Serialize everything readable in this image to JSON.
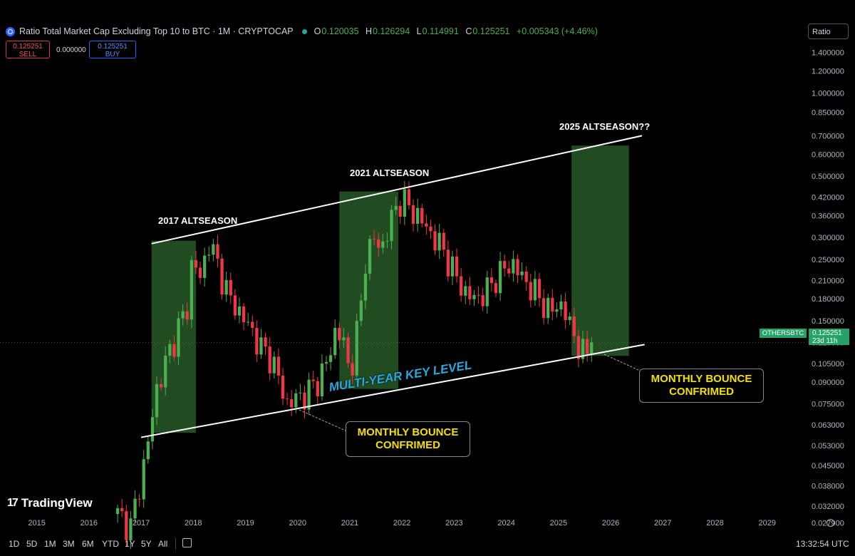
{
  "header": {
    "title": "Ratio Total Market Cap Excluding Top 10 to BTC · 1M · CRYPTOCAP",
    "open_label": "O",
    "open": "0.120035",
    "high_label": "H",
    "high": "0.126294",
    "low_label": "L",
    "low": "0.114991",
    "close_label": "C",
    "close": "0.125251",
    "change": "+0.005343 (+4.46%)"
  },
  "trade": {
    "sell_price": "0.125251",
    "sell_label": "SELL",
    "spread": "0.000000",
    "buy_price": "0.125251",
    "buy_label": "BUY"
  },
  "scale_button": "Ratio",
  "current": {
    "symbol": "OTHERSBTC",
    "price": "0.125251",
    "countdown": "23d 11h"
  },
  "bottom": {
    "timeframes": [
      "1D",
      "5D",
      "1M",
      "3M",
      "6M",
      "YTD",
      "1Y",
      "5Y",
      "All"
    ],
    "clock": "13:32:54 UTC"
  },
  "branding": "TradingView",
  "colors": {
    "up": "#4caf50",
    "down": "#f23645",
    "zone": "#2e6a2e",
    "callout_text": "#f5e000",
    "key_level_text": "#29a8e0"
  },
  "chart_data": {
    "type": "candlestick",
    "title": "Ratio Total Market Cap Excluding Top 10 to BTC",
    "interval": "1M",
    "scale": "log",
    "ylim": [
      0.0265,
      1.5
    ],
    "xlim": [
      2014.5,
      2029.7
    ],
    "y_ticks": [
      "1.400000",
      "1.200000",
      "1.000000",
      "0.850000",
      "0.700000",
      "0.600000",
      "0.500000",
      "0.420000",
      "0.360000",
      "0.300000",
      "0.250000",
      "0.210000",
      "0.180000",
      "0.150000",
      "0.125000",
      "0.105000",
      "0.090000",
      "0.075000",
      "0.063000",
      "0.053000",
      "0.045000",
      "0.038000",
      "0.032000",
      "0.027900"
    ],
    "x_ticks": [
      "2015",
      "2016",
      "2017",
      "2018",
      "2019",
      "2020",
      "2021",
      "2022",
      "2023",
      "2024",
      "2025",
      "2026",
      "2027",
      "2028",
      "2029"
    ],
    "anchors": [
      [
        2016.55,
        0.03
      ],
      [
        2016.8,
        0.027
      ],
      [
        2017.1,
        0.05
      ],
      [
        2017.3,
        0.085
      ],
      [
        2017.5,
        0.11
      ],
      [
        2017.7,
        0.14
      ],
      [
        2017.9,
        0.17
      ],
      [
        2018.0,
        0.28
      ],
      [
        2018.1,
        0.2
      ],
      [
        2018.3,
        0.29
      ],
      [
        2018.5,
        0.23
      ],
      [
        2018.7,
        0.18
      ],
      [
        2018.9,
        0.16
      ],
      [
        2019.1,
        0.14
      ],
      [
        2019.3,
        0.12
      ],
      [
        2019.5,
        0.11
      ],
      [
        2019.7,
        0.085
      ],
      [
        2019.8,
        0.075
      ],
      [
        2019.95,
        0.078
      ],
      [
        2020.2,
        0.083
      ],
      [
        2020.4,
        0.092
      ],
      [
        2020.6,
        0.11
      ],
      [
        2020.75,
        0.145
      ],
      [
        2020.9,
        0.12
      ],
      [
        2021.0,
        0.095
      ],
      [
        2021.1,
        0.125
      ],
      [
        2021.2,
        0.16
      ],
      [
        2021.3,
        0.25
      ],
      [
        2021.45,
        0.3
      ],
      [
        2021.6,
        0.27
      ],
      [
        2021.75,
        0.33
      ],
      [
        2021.9,
        0.39
      ],
      [
        2022.0,
        0.42
      ],
      [
        2022.1,
        0.39
      ],
      [
        2022.3,
        0.36
      ],
      [
        2022.45,
        0.33
      ],
      [
        2022.6,
        0.3
      ],
      [
        2022.75,
        0.28
      ],
      [
        2022.9,
        0.245
      ],
      [
        2023.05,
        0.215
      ],
      [
        2023.2,
        0.19
      ],
      [
        2023.4,
        0.18
      ],
      [
        2023.6,
        0.19
      ],
      [
        2023.8,
        0.215
      ],
      [
        2024.0,
        0.235
      ],
      [
        2024.15,
        0.24
      ],
      [
        2024.3,
        0.215
      ],
      [
        2024.5,
        0.195
      ],
      [
        2024.7,
        0.175
      ],
      [
        2024.85,
        0.16
      ],
      [
        2025.0,
        0.175
      ],
      [
        2025.1,
        0.165
      ],
      [
        2025.25,
        0.14
      ],
      [
        2025.4,
        0.12
      ],
      [
        2025.5,
        0.112
      ],
      [
        2025.6,
        0.118
      ],
      [
        2025.65,
        0.125251
      ]
    ],
    "trendlines": [
      {
        "name": "upper",
        "from": [
          2017.2,
          0.285
        ],
        "to": [
          2026.6,
          0.7
        ]
      },
      {
        "name": "lower",
        "from": [
          2017.0,
          0.0568
        ],
        "to": [
          2026.65,
          0.123
        ]
      }
    ],
    "zones": [
      {
        "x0": 2017.2,
        "x1": 2018.05,
        "y0": 0.059,
        "y1": 0.292
      },
      {
        "x0": 2020.8,
        "x1": 2021.93,
        "y0": 0.085,
        "y1": 0.44
      },
      {
        "x0": 2025.25,
        "x1": 2026.35,
        "y0": 0.112,
        "y1": 0.645
      }
    ],
    "annotations": {
      "alt2017": "2017 ALTSEASON",
      "alt2021": "2021 ALTSEASON",
      "alt2025": "2025 ALTSEASON??",
      "key_level": "MULTI-YEAR KEY LEVEL",
      "callout1": "MONTHLY BOUNCE CONFRIMED",
      "callout2": "MONTHLY BOUNCE CONFRIMED"
    }
  }
}
